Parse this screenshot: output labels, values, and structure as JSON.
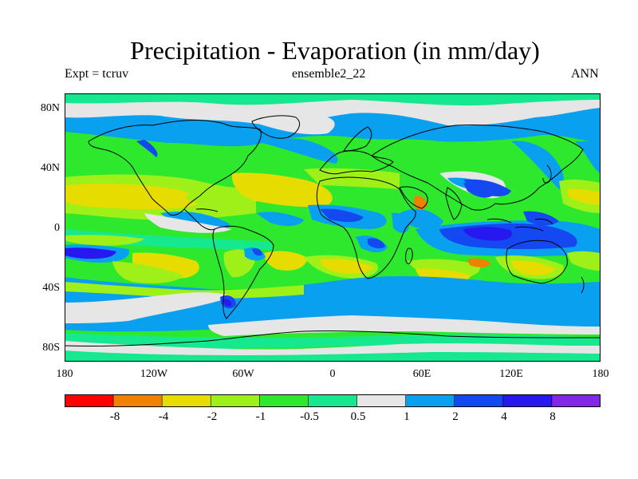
{
  "title": "Precipitation - Evaporation (in mm/day)",
  "expt_label": "Expt = tcruv",
  "ensemble_label": "ensemble2_22",
  "season_label": "ANN",
  "lat_labels": [
    "80N",
    "40N",
    "0",
    "40S",
    "80S"
  ],
  "lon_labels": [
    "180",
    "120W",
    "60W",
    "0",
    "60E",
    "120E",
    "180"
  ],
  "colorbar": {
    "colors": [
      "#ff0000",
      "#f08000",
      "#e6dc00",
      "#9ff018",
      "#2ee82e",
      "#16e890",
      "#e6e6e6",
      "#0aa0f0",
      "#1448f0",
      "#2818f0",
      "#8226e8"
    ],
    "labels": [
      "-8",
      "-4",
      "-2",
      "-1",
      "-0.5",
      "0.5",
      "1",
      "2",
      "4",
      "8"
    ]
  },
  "map_colors": {
    "background": "#2ee82e",
    "neutral": "#16e890",
    "grey": "#e6e6e6",
    "lightblue": "#0aa0f0",
    "blue": "#1448f0",
    "darkblue": "#2818f0",
    "lightgreen": "#9ff018",
    "yellow": "#e6dc00",
    "orange": "#f08000",
    "coastline": "#000000"
  }
}
